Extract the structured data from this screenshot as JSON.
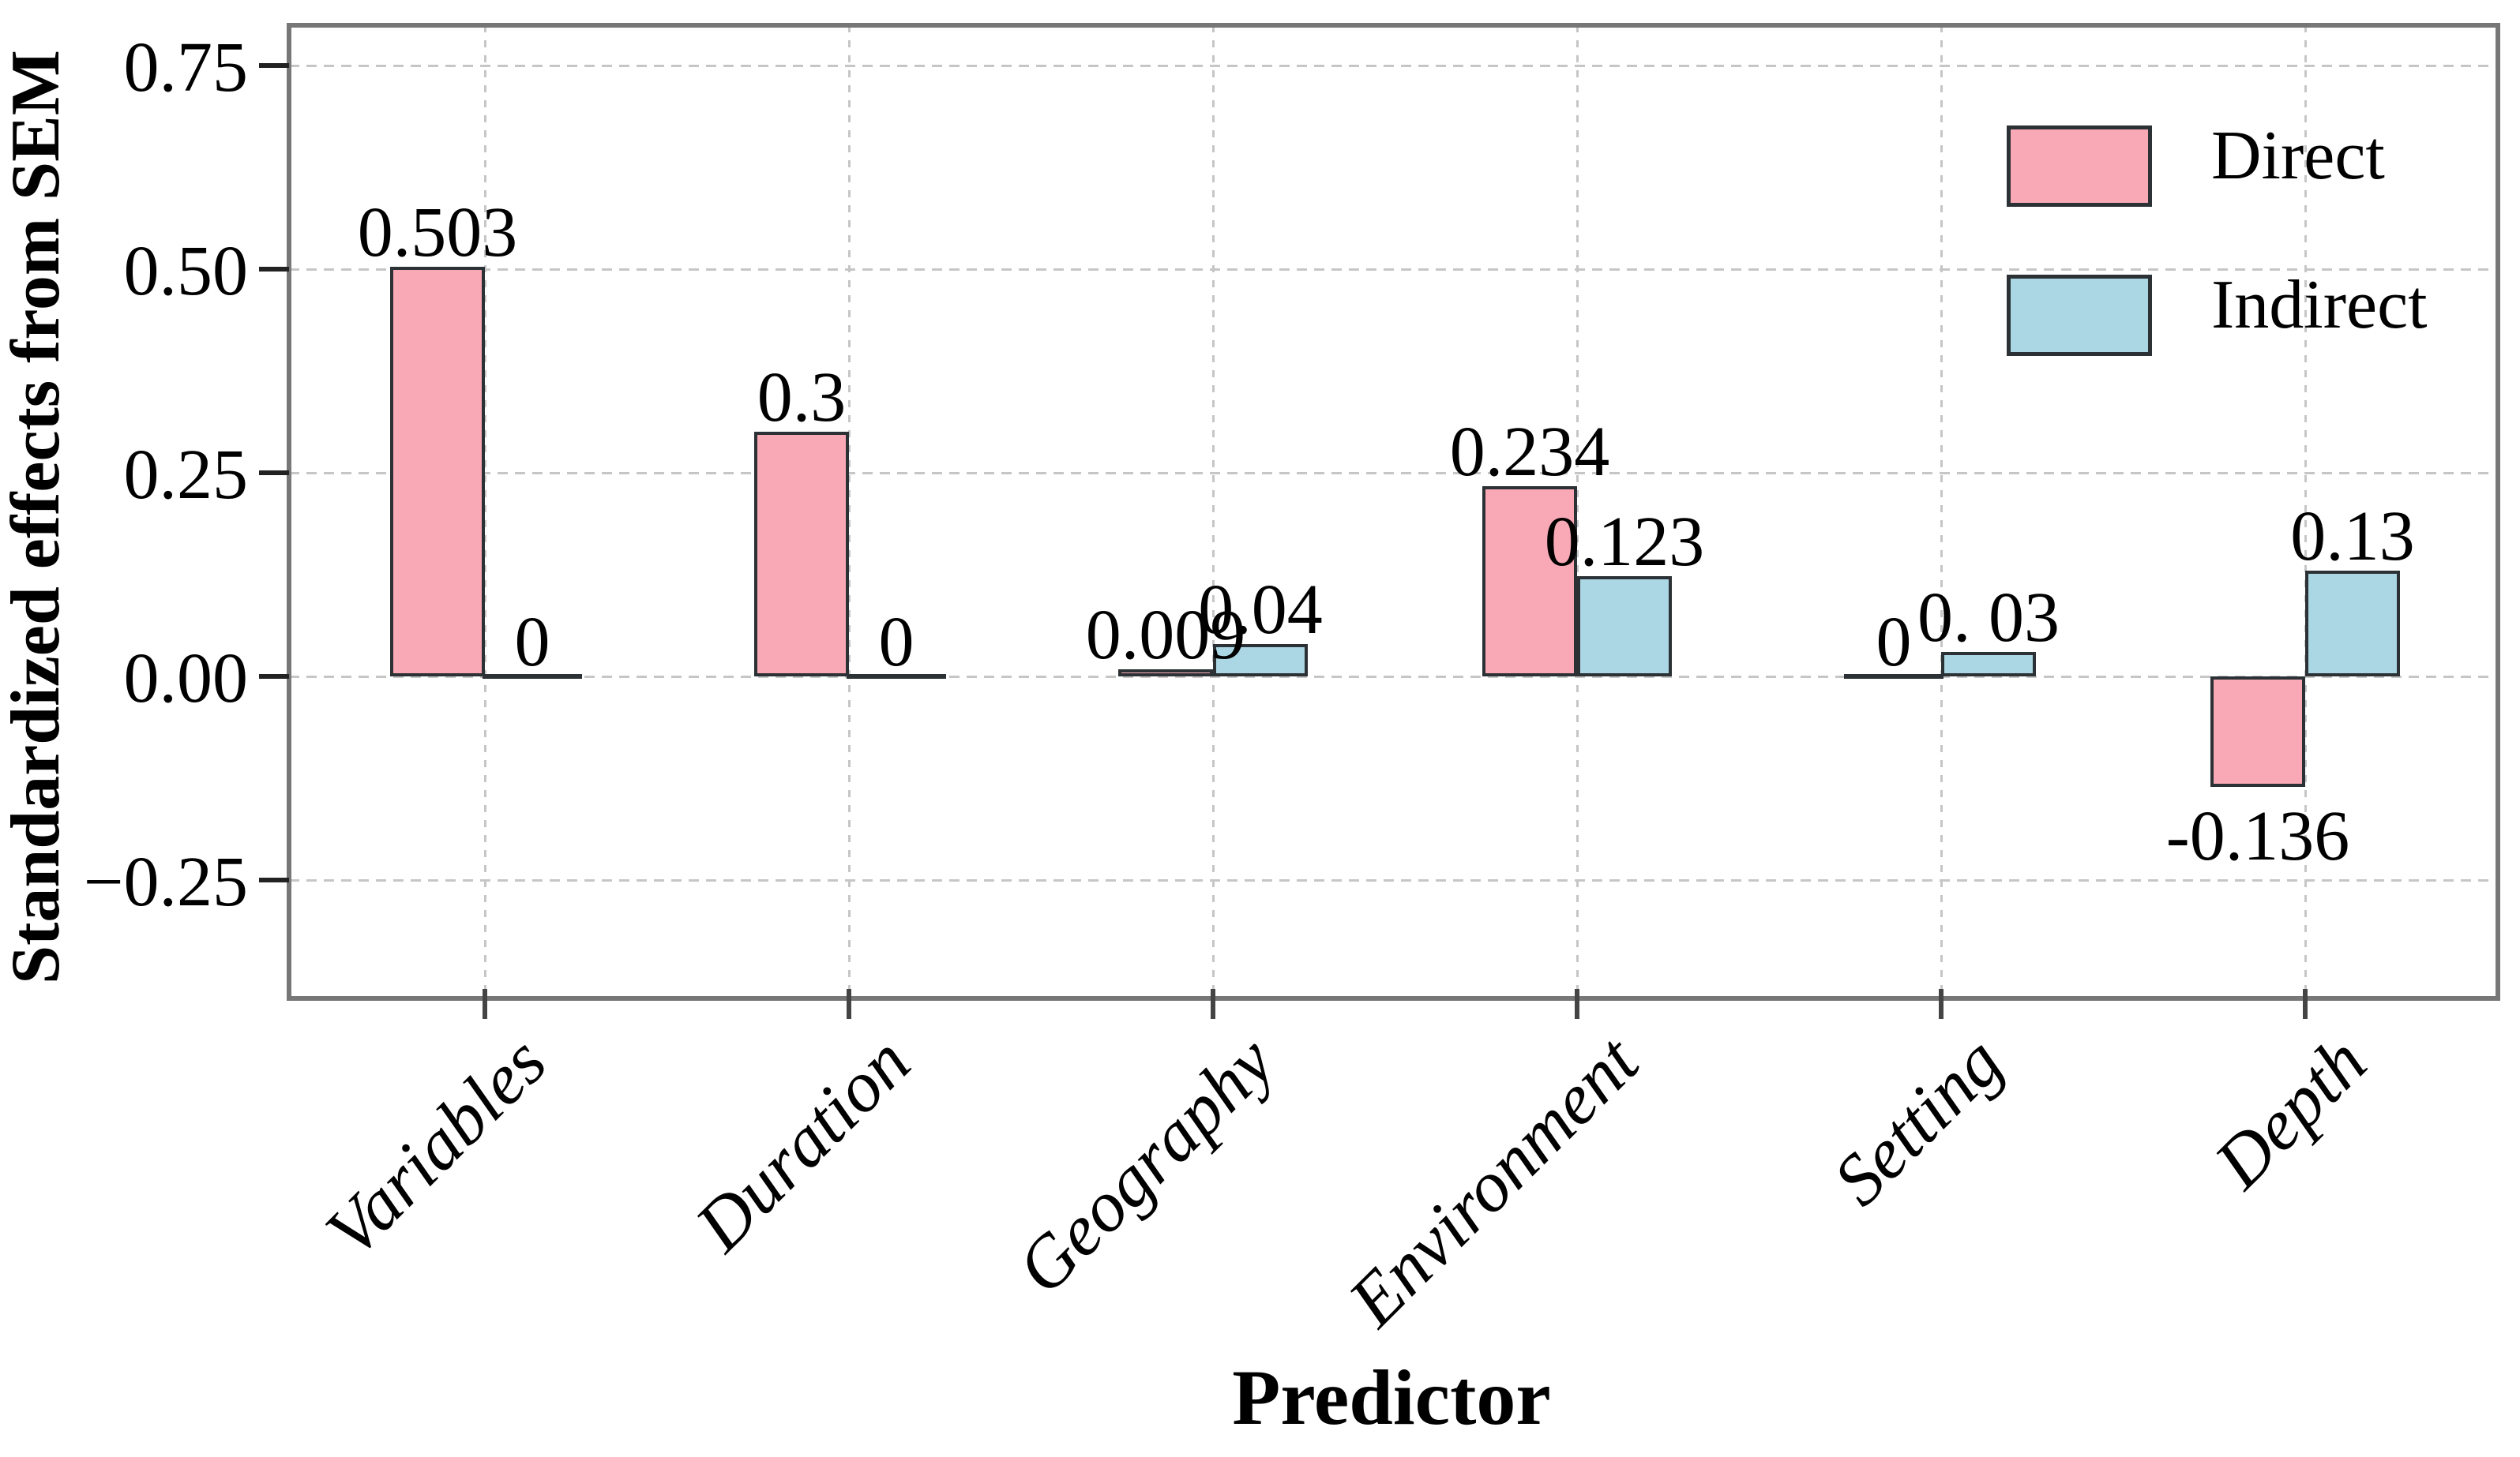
{
  "figure": {
    "background": "#ffffff",
    "ylabel": "Standardized effects from SEM",
    "xlabel": "Predictor"
  },
  "legend": {
    "position": "upper right",
    "frame": false,
    "items": [
      {
        "label": "Direct",
        "color": "#F9A9B6"
      },
      {
        "label": "Indirect",
        "color": "#ABD7E4"
      }
    ]
  },
  "chart_data": {
    "type": "bar",
    "title": "",
    "xlabel": "Predictor",
    "ylabel": "Standardized effects from SEM",
    "categories": [
      "Variables",
      "Duration",
      "Geography",
      "Environment",
      "Setting",
      "Depth"
    ],
    "series": [
      {
        "name": "Direct",
        "color": "#F9A9B6",
        "values": [
          0.503,
          0.3,
          0.009,
          0.234,
          0,
          -0.136
        ],
        "value_labels": [
          "0.503",
          "0.3",
          "0.009",
          "0.234",
          "0",
          "-0.136"
        ]
      },
      {
        "name": "Indirect",
        "color": "#ABD7E4",
        "values": [
          0,
          0,
          0.04,
          0.123,
          0.03,
          0.13
        ],
        "value_labels": [
          "0",
          "0",
          "0.04",
          "0.123",
          "0. 03",
          "0.13"
        ]
      }
    ],
    "y_ticks": [
      {
        "value": 0.75,
        "label": "0.75"
      },
      {
        "value": 0.5,
        "label": "0.50"
      },
      {
        "value": 0.25,
        "label": "0.25"
      },
      {
        "value": 0,
        "label": "0.00"
      },
      {
        "value": -0.25,
        "label": "−0.25"
      }
    ],
    "ylim": [
      -0.384,
      0.8
    ],
    "grid": true,
    "grid_style": "dashed",
    "legend_position": "upper right",
    "styles": {
      "bar_edge": "#2B3134",
      "spine": "#777777",
      "gridline": "#C6C6C6",
      "tick_mark": "#222222",
      "text": "#000000"
    }
  }
}
